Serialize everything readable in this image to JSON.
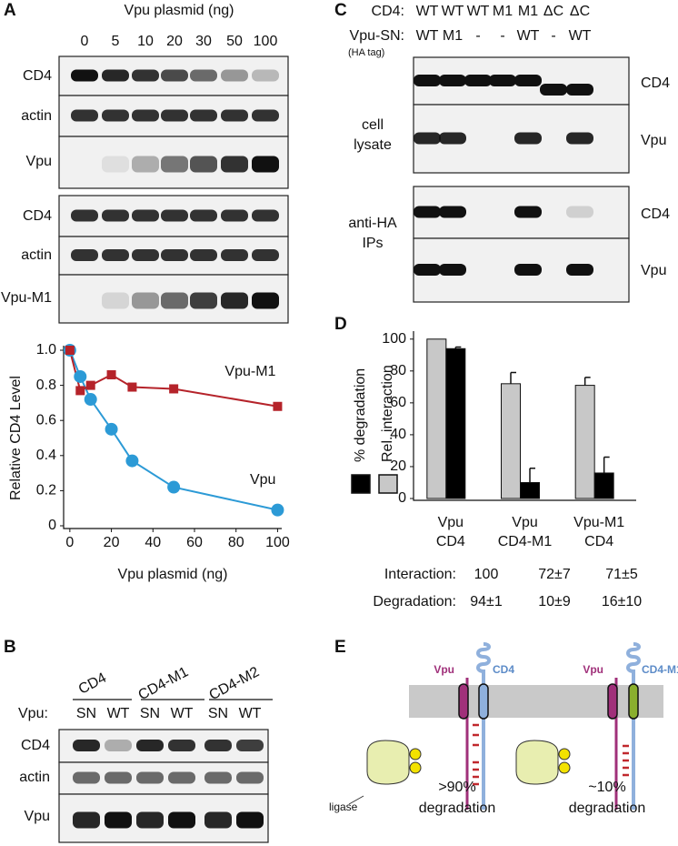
{
  "panel_labels": [
    "A",
    "B",
    "C",
    "D",
    "E"
  ],
  "A": {
    "header": "Vpu plasmid (ng)",
    "lanes": [
      "0",
      "5",
      "10",
      "20",
      "30",
      "50",
      "100"
    ],
    "blot1_rows": [
      "CD4",
      "actin",
      "Vpu"
    ],
    "blot2_rows": [
      "CD4",
      "actin",
      "Vpu-M1"
    ]
  },
  "B": {
    "groups": [
      "CD4",
      "CD4-M1",
      "CD4-M2"
    ],
    "lane_label": "Vpu:",
    "lanes": [
      "SN",
      "WT",
      "SN",
      "WT",
      "SN",
      "WT"
    ],
    "rows": [
      "CD4",
      "actin",
      "Vpu"
    ]
  },
  "C": {
    "cd4_label": "CD4:",
    "cd4": [
      "WT",
      "WT",
      "WT",
      "M1",
      "M1",
      "ΔC",
      "ΔC"
    ],
    "vpu_label": "Vpu-SN:",
    "vpu": [
      "WT",
      "M1",
      "-",
      "-",
      "WT",
      "-",
      "WT"
    ],
    "tag": "(HA tag)",
    "lysate_label": [
      "cell",
      "lysate"
    ],
    "ip_label": [
      "anti-HA",
      "IPs"
    ],
    "rows": [
      "CD4",
      "Vpu",
      "CD4",
      "Vpu"
    ]
  },
  "D": {
    "table": [
      [
        "Interaction:",
        "100",
        "72±7",
        "71±5"
      ],
      [
        "Degradation:",
        "94±1",
        "10±9",
        "16±10"
      ]
    ]
  },
  "E": {
    "left": {
      "vpu": "Vpu",
      "cd4": "CD4",
      "ligase": "ligase",
      "percent": ">90%",
      "outcome": "degradation"
    },
    "right": {
      "vpu": "Vpu",
      "cd4": "CD4-M1",
      "percent": "~10%",
      "outcome": "degradation"
    }
  },
  "chart_data": [
    {
      "type": "line",
      "xlabel": "Vpu plasmid (ng)",
      "ylabel": "Relative CD4 Level",
      "x": [
        0,
        5,
        10,
        20,
        30,
        50,
        100
      ],
      "series": [
        {
          "name": "Vpu-M1",
          "color": "#b5232a",
          "marker": "square",
          "values": [
            1.0,
            0.77,
            0.8,
            0.86,
            0.79,
            0.78,
            0.68
          ]
        },
        {
          "name": "Vpu",
          "color": "#2c9ad6",
          "marker": "circle",
          "values": [
            1.0,
            0.85,
            0.72,
            0.55,
            0.37,
            0.22,
            0.09
          ]
        }
      ],
      "xlim": [
        -3,
        102
      ],
      "ylim": [
        0,
        1
      ],
      "xticks": [
        0,
        20,
        40,
        60,
        80,
        100
      ],
      "yticks": [
        0,
        0.2,
        0.4,
        0.6,
        0.8,
        {
          "value": 1,
          "label": "1.0"
        }
      ]
    },
    {
      "type": "bar",
      "categories": [
        [
          "Vpu",
          "CD4"
        ],
        [
          "Vpu",
          "CD4-M1"
        ],
        [
          "Vpu-M1",
          "CD4"
        ]
      ],
      "series": [
        {
          "name": "Rel. interaction",
          "color": "#c8c8c8",
          "values": [
            100,
            72,
            71
          ],
          "errors": [
            null,
            7,
            5
          ]
        },
        {
          "name": "% degradation",
          "color": "#000000",
          "values": [
            94,
            10,
            16
          ],
          "errors": [
            1,
            9,
            10
          ]
        }
      ],
      "ylim": [
        0,
        105
      ],
      "yticks": [
        0,
        20,
        40,
        60,
        80,
        100
      ],
      "legend": "left"
    }
  ]
}
